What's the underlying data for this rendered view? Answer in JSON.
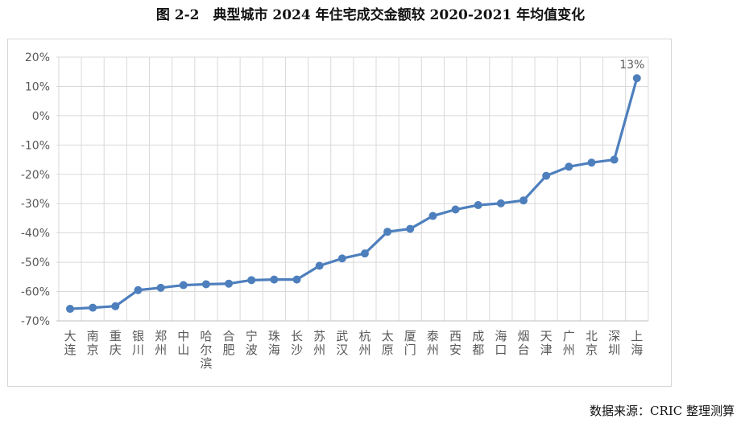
{
  "header": {
    "title": "图 2-2　典型城市 2024 年住宅成交金额较 2020-2021 年均值变化"
  },
  "footer": {
    "source": "数据来源：CRIC 整理测算"
  },
  "chart_data": {
    "type": "line",
    "title": "图 2-2　典型城市 2024 年住宅成交金额较 2020-2021 年均值变化",
    "xlabel": "",
    "ylabel": "",
    "categories": [
      "大连",
      "南京",
      "重庆",
      "银川",
      "郑州",
      "中山",
      "哈尔滨",
      "合肥",
      "宁波",
      "珠海",
      "长沙",
      "苏州",
      "武汉",
      "杭州",
      "太原",
      "厦门",
      "泰州",
      "西安",
      "成都",
      "海口",
      "烟台",
      "天津",
      "广州",
      "北京",
      "深圳",
      "上海"
    ],
    "series": [
      {
        "values": [
          -65.9,
          -65.5,
          -65.0,
          -59.5,
          -58.7,
          -57.8,
          -57.5,
          -57.3,
          -56.1,
          -55.9,
          -55.9,
          -51.2,
          -48.7,
          -47.0,
          -39.6,
          -38.6,
          -34.2,
          -32.0,
          -30.5,
          -29.9,
          -28.9,
          -20.5,
          -17.4,
          -16.0,
          -15.0,
          12.8
        ],
        "color": "#4e7fbd"
      }
    ],
    "ylim": [
      -70,
      20
    ],
    "yticks": [
      -70,
      -60,
      -50,
      -40,
      -30,
      -20,
      -10,
      0,
      10,
      20
    ],
    "ytick_labels": [
      "-70%",
      "-60%",
      "-50%",
      "-40%",
      "-30%",
      "-20%",
      "-10%",
      "0%",
      "10%",
      "20%"
    ],
    "grid": true,
    "annotations": [
      {
        "category": "上海",
        "text": "13%"
      }
    ],
    "colors": {
      "line": "#4e7fbd",
      "grid": "#d9d9d9",
      "axis": "#bfbfbf"
    }
  }
}
